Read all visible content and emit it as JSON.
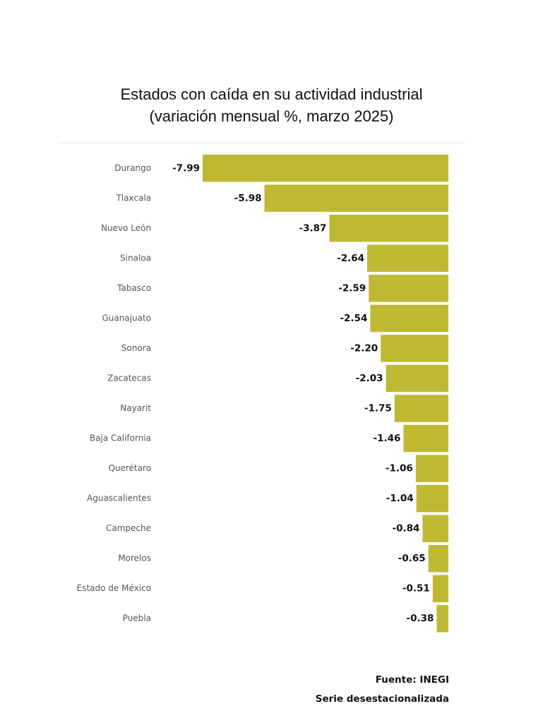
{
  "chart_data": {
    "type": "bar",
    "orientation": "horizontal",
    "title": "Estados con caída en su actividad industrial",
    "subtitle": "(variación mensual %, marzo 2025)",
    "categories": [
      "Durango",
      "Tlaxcala",
      "Nuevo León",
      "Sinaloa",
      "Tabasco",
      "Guanajuato",
      "Sonora",
      "Zacatecas",
      "Nayarit",
      "Baja California",
      "Querétaro",
      "Aguascalientes",
      "Campeche",
      "Morelos",
      "Estado de México",
      "Puebla"
    ],
    "values": [
      -7.99,
      -5.98,
      -3.87,
      -2.64,
      -2.59,
      -2.54,
      -2.2,
      -2.03,
      -1.75,
      -1.46,
      -1.06,
      -1.04,
      -0.84,
      -0.65,
      -0.51,
      -0.38
    ],
    "value_labels": [
      "-7.99",
      "-5.98",
      "-3.87",
      "-2.64",
      "-2.59",
      "-2.54",
      "-2.20",
      "-2.03",
      "-1.75",
      "-1.46",
      "-1.06",
      "-1.04",
      "-0.84",
      "-0.65",
      "-0.51",
      "-0.38"
    ],
    "xlim": [
      -7.99,
      0
    ],
    "bar_color": "#bfb833",
    "xlabel": "",
    "ylabel": "",
    "grid": false,
    "legend": "none"
  },
  "footer": {
    "source": "Fuente: INEGI",
    "note": "Serie desestacionalizada"
  }
}
